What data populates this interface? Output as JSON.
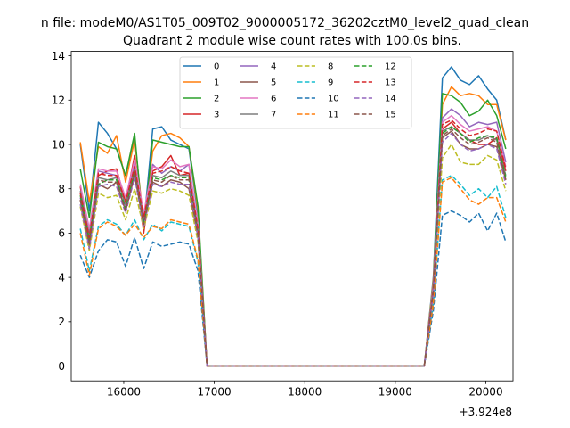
{
  "chart_data": {
    "type": "line",
    "suptitle": "n file: modeM0/AS1T05_009T02_9000005172_36202cztM0_level2_quad_clean",
    "title": "Quadrant 2 module wise count rates with 100.0s bins.",
    "xlabel": "",
    "ylabel": "",
    "x_offset_label": "+3.924e8",
    "xlim": [
      15420,
      20300
    ],
    "ylim": [
      -0.67,
      14.2
    ],
    "xticks": [
      16000,
      17000,
      18000,
      19000,
      20000
    ],
    "xtick_labels": [
      "16000",
      "17000",
      "18000",
      "19000",
      "20000"
    ],
    "yticks": [
      0,
      2,
      4,
      6,
      8,
      10,
      12,
      14
    ],
    "ytick_labels": [
      "0",
      "2",
      "4",
      "6",
      "8",
      "10",
      "12",
      "14"
    ],
    "grid": false,
    "legend": {
      "placement": "top-center",
      "columns": 4
    },
    "x": [
      15520,
      15620,
      15720,
      15820,
      15920,
      16020,
      16120,
      16220,
      16320,
      16420,
      16520,
      16620,
      16720,
      16820,
      16920,
      17020,
      19320,
      19420,
      19520,
      19620,
      19720,
      19820,
      19920,
      20020,
      20120,
      20220
    ],
    "series": [
      {
        "name": "0",
        "color": "#1f77b4",
        "dash": "solid",
        "values": [
          10.0,
          7.0,
          11.0,
          10.5,
          9.8,
          8.6,
          10.3,
          6.3,
          10.7,
          10.8,
          10.2,
          10.0,
          9.8,
          6.8,
          0,
          0,
          0,
          4.0,
          13.0,
          13.5,
          12.9,
          12.7,
          13.1,
          12.5,
          12.0,
          10.2
        ]
      },
      {
        "name": "1",
        "color": "#ff7f0e",
        "dash": "solid",
        "values": [
          10.1,
          7.4,
          9.9,
          9.6,
          10.4,
          8.3,
          10.2,
          6.5,
          9.7,
          10.4,
          10.5,
          10.3,
          9.9,
          7.0,
          0,
          0,
          0,
          3.9,
          11.8,
          12.6,
          12.2,
          12.3,
          12.2,
          11.8,
          11.8,
          10.2
        ]
      },
      {
        "name": "2",
        "color": "#2ca02c",
        "dash": "solid",
        "values": [
          8.9,
          6.7,
          10.1,
          9.9,
          9.8,
          8.6,
          10.5,
          6.1,
          10.2,
          10.1,
          10.0,
          9.9,
          9.9,
          7.2,
          0,
          0,
          0,
          3.8,
          12.3,
          12.2,
          11.9,
          11.3,
          11.5,
          12.0,
          11.3,
          9.8
        ]
      },
      {
        "name": "3",
        "color": "#d62728",
        "dash": "solid",
        "values": [
          8.1,
          5.6,
          8.6,
          8.8,
          8.9,
          7.4,
          9.5,
          6.0,
          8.8,
          9.0,
          9.5,
          8.6,
          8.7,
          6.3,
          0,
          0,
          0,
          3.6,
          10.7,
          11.0,
          10.5,
          10.2,
          10.0,
          10.0,
          10.3,
          8.8
        ]
      },
      {
        "name": "4",
        "color": "#9467bd",
        "dash": "solid",
        "values": [
          7.6,
          6.0,
          8.8,
          8.7,
          8.6,
          7.2,
          9.1,
          6.8,
          9.1,
          8.7,
          9.0,
          8.8,
          9.1,
          6.2,
          0,
          0,
          0,
          3.6,
          11.2,
          11.6,
          11.3,
          10.8,
          11.0,
          10.9,
          11.0,
          9.2
        ]
      },
      {
        "name": "5",
        "color": "#8c564b",
        "dash": "solid",
        "values": [
          7.5,
          5.4,
          8.2,
          8.0,
          8.3,
          7.0,
          8.6,
          6.4,
          8.3,
          8.1,
          8.4,
          8.3,
          8.0,
          5.8,
          0,
          0,
          0,
          3.3,
          10.3,
          10.6,
          10.0,
          9.8,
          9.8,
          10.0,
          9.9,
          8.4
        ]
      },
      {
        "name": "6",
        "color": "#e377c2",
        "dash": "solid",
        "values": [
          8.2,
          6.2,
          8.9,
          8.8,
          8.8,
          7.6,
          9.3,
          6.9,
          9.0,
          8.9,
          9.3,
          9.0,
          9.1,
          6.4,
          0,
          0,
          0,
          3.7,
          11.0,
          11.3,
          10.9,
          10.6,
          10.7,
          10.8,
          10.6,
          9.0
        ]
      },
      {
        "name": "7",
        "color": "#7f7f7f",
        "dash": "solid",
        "values": [
          7.9,
          5.9,
          8.5,
          8.4,
          8.5,
          7.3,
          8.9,
          6.6,
          8.6,
          8.5,
          8.8,
          8.6,
          8.6,
          6.1,
          0,
          0,
          0,
          3.5,
          10.6,
          10.8,
          10.5,
          10.2,
          10.2,
          10.4,
          10.2,
          8.6
        ]
      },
      {
        "name": "8",
        "color": "#bcbd22",
        "dash": "dashed",
        "values": [
          7.2,
          5.2,
          7.8,
          7.6,
          7.7,
          6.6,
          8.0,
          6.2,
          7.9,
          7.8,
          8.0,
          7.9,
          7.7,
          5.6,
          0,
          0,
          0,
          3.1,
          9.4,
          10.0,
          9.2,
          9.1,
          9.1,
          9.5,
          9.3,
          7.9
        ]
      },
      {
        "name": "9",
        "color": "#17becf",
        "dash": "dashed",
        "values": [
          6.2,
          4.3,
          6.3,
          6.6,
          6.4,
          5.9,
          6.6,
          5.7,
          6.4,
          6.1,
          6.5,
          6.4,
          6.3,
          4.7,
          0,
          0,
          0,
          2.8,
          8.4,
          8.6,
          8.2,
          7.7,
          8.0,
          7.6,
          8.1,
          6.7
        ]
      },
      {
        "name": "10",
        "color": "#1f77b4",
        "dash": "dashed",
        "values": [
          5.0,
          4.0,
          5.2,
          5.7,
          5.6,
          4.5,
          5.8,
          4.4,
          5.6,
          5.4,
          5.5,
          5.6,
          5.5,
          4.3,
          0,
          0,
          0,
          2.5,
          6.8,
          7.0,
          6.8,
          6.5,
          6.9,
          6.1,
          6.9,
          5.6
        ]
      },
      {
        "name": "11",
        "color": "#ff7f0e",
        "dash": "dashed",
        "values": [
          6.0,
          4.1,
          6.2,
          6.5,
          6.3,
          5.9,
          6.4,
          5.8,
          6.3,
          6.2,
          6.6,
          6.5,
          6.4,
          4.8,
          0,
          0,
          0,
          2.8,
          8.3,
          8.5,
          8.0,
          7.5,
          7.3,
          7.6,
          7.6,
          6.5
        ]
      },
      {
        "name": "12",
        "color": "#2ca02c",
        "dash": "dashed",
        "values": [
          7.7,
          5.7,
          8.2,
          8.4,
          8.4,
          7.1,
          8.8,
          6.5,
          8.5,
          8.4,
          8.6,
          8.5,
          8.5,
          6.0,
          0,
          0,
          0,
          3.4,
          10.5,
          10.8,
          10.5,
          10.1,
          10.3,
          10.4,
          10.3,
          8.5
        ]
      },
      {
        "name": "13",
        "color": "#d62728",
        "dash": "dashed",
        "values": [
          7.8,
          5.8,
          8.7,
          8.6,
          8.6,
          7.4,
          9.0,
          6.7,
          8.7,
          8.8,
          9.0,
          8.8,
          8.7,
          6.2,
          0,
          0,
          0,
          3.5,
          10.9,
          11.1,
          10.7,
          10.4,
          10.5,
          10.7,
          10.6,
          8.9
        ]
      },
      {
        "name": "14",
        "color": "#9467bd",
        "dash": "dashed",
        "values": [
          7.3,
          5.3,
          8.1,
          8.2,
          8.1,
          6.9,
          8.5,
          6.3,
          8.2,
          8.1,
          8.3,
          8.2,
          8.2,
          5.8,
          0,
          0,
          0,
          3.3,
          10.1,
          10.5,
          10.0,
          9.7,
          9.8,
          10.0,
          9.8,
          8.2
        ]
      },
      {
        "name": "15",
        "color": "#8c564b",
        "dash": "dashed",
        "values": [
          7.5,
          5.5,
          8.4,
          8.3,
          8.3,
          7.0,
          8.7,
          6.4,
          8.4,
          8.3,
          8.6,
          8.4,
          8.4,
          5.9,
          0,
          0,
          0,
          3.4,
          10.4,
          10.7,
          10.3,
          10.0,
          10.1,
          10.3,
          10.1,
          8.4
        ]
      }
    ]
  }
}
